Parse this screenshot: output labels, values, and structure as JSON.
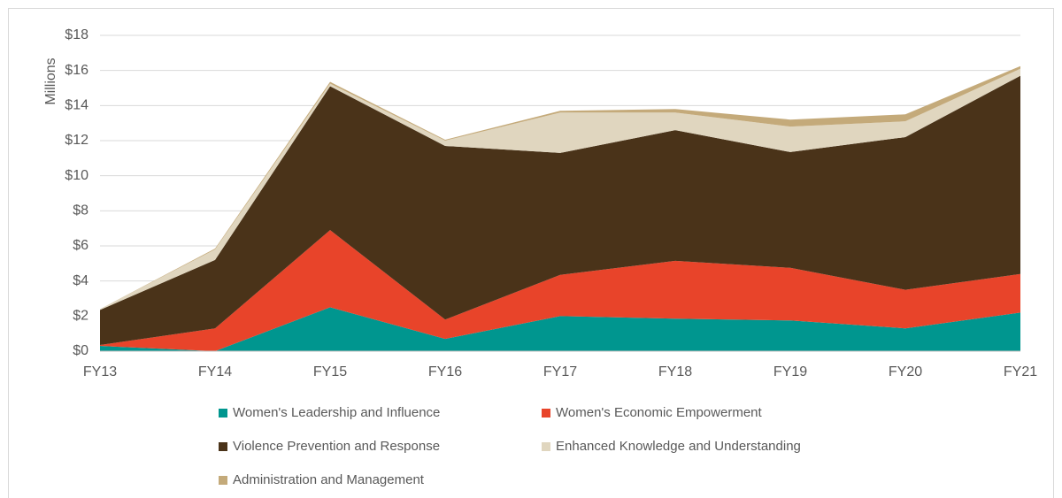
{
  "chart_data": {
    "type": "stacked_area",
    "y_label": "Millions",
    "categories": [
      "FY13",
      "FY14",
      "FY15",
      "FY16",
      "FY17",
      "FY18",
      "FY19",
      "FY20",
      "FY21"
    ],
    "series": [
      {
        "name": "Women's Leadership and Influence",
        "color": "#00968f",
        "values": [
          0.3,
          0,
          2.5,
          0.7,
          2.0,
          1.85,
          1.75,
          1.3,
          2.2
        ]
      },
      {
        "name": "Women's Economic Empowerment",
        "color": "#e8442a",
        "values": [
          0.05,
          1.3,
          4.4,
          1.1,
          2.35,
          3.3,
          3.0,
          2.2,
          2.2
        ]
      },
      {
        "name": "Violence Prevention and Response",
        "color": "#4a3319",
        "values": [
          2.0,
          3.9,
          8.2,
          9.9,
          6.95,
          7.45,
          6.6,
          8.7,
          11.3
        ]
      },
      {
        "name": "Enhanced Knowledge and Understanding",
        "color": "#e0d6bf",
        "values": [
          0.05,
          0.6,
          0.15,
          0.3,
          2.3,
          1.0,
          1.45,
          0.9,
          0.4
        ]
      },
      {
        "name": "Administration and Management",
        "color": "#c4aa7a",
        "values": [
          0.0,
          0.05,
          0.1,
          0.05,
          0.1,
          0.2,
          0.4,
          0.4,
          0.15
        ]
      }
    ],
    "ylim": [
      0,
      18
    ],
    "yticks": [
      {
        "value": 0,
        "label": "$0"
      },
      {
        "value": 2,
        "label": "$2"
      },
      {
        "value": 4,
        "label": "$4"
      },
      {
        "value": 6,
        "label": "$6"
      },
      {
        "value": 8,
        "label": "$8"
      },
      {
        "value": 10,
        "label": "$10"
      },
      {
        "value": 12,
        "label": "$12"
      },
      {
        "value": 14,
        "label": "$14"
      },
      {
        "value": 16,
        "label": "$16"
      },
      {
        "value": 18,
        "label": "$18"
      }
    ],
    "grid": true
  }
}
